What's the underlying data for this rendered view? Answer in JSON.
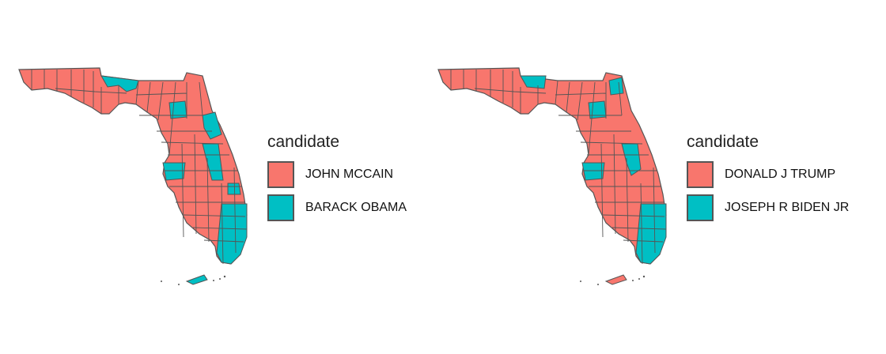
{
  "colors": {
    "red": "#F8766D",
    "teal": "#00BFC4",
    "border": "#555555"
  },
  "maps": [
    {
      "legend_title": "candidate",
      "candidates": [
        {
          "label": "JOHN MCCAIN",
          "color": "#F8766D"
        },
        {
          "label": "BARACK OBAMA",
          "color": "#00BFC4"
        }
      ]
    },
    {
      "legend_title": "candidate",
      "candidates": [
        {
          "label": "DONALD J TRUMP",
          "color": "#F8766D"
        },
        {
          "label": "JOSEPH R BIDEN JR",
          "color": "#00BFC4"
        }
      ]
    }
  ]
}
